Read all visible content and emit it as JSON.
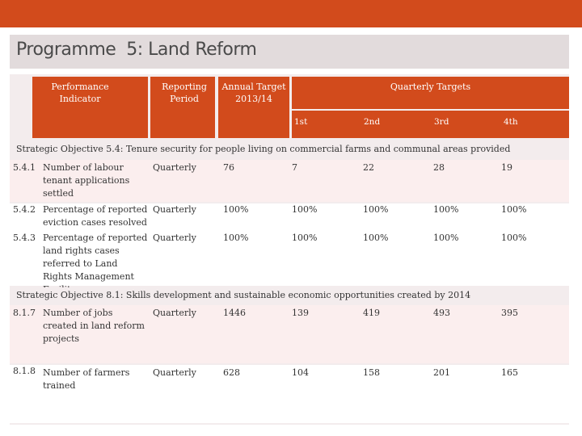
{
  "title": "Programme  5: Land Reform",
  "header": {
    "performance_indicator": "Performance Indicator",
    "reporting_period": "Reporting Period",
    "annual_target": "Annual Target 2013/14",
    "quarterly_targets": "Quarterly Targets",
    "quarters": [
      "1st",
      "2nd",
      "3rd",
      "4th"
    ]
  },
  "objective_1": "Strategic Objective 5.4: Tenure security for people living on commercial farms and communal areas provided",
  "objective_2": "Strategic Objective 8.1:  Skills development and sustainable economic opportunities created by 2014",
  "rows": [
    {
      "id": "5.4.1",
      "indicator": "Number of labour tenant applications settled",
      "period": "Quarterly",
      "annual": "76",
      "q1": "7",
      "q2": "22",
      "q3": "28",
      "q4": "19"
    },
    {
      "id": "5.4.2",
      "indicator": "Percentage of reported eviction  cases resolved",
      "period": "Quarterly",
      "annual": "100%",
      "q1": "100%",
      "q2": "100%",
      "q3": "100%",
      "q4": "100%"
    },
    {
      "id": "5.4.3",
      "indicator": "Percentage of reported land rights cases referred to Land Rights Management Facility",
      "period": "Quarterly",
      "annual": "100%",
      "q1": "100%",
      "q2": "100%",
      "q3": "100%",
      "q4": "100%"
    },
    {
      "id": "8.1.7",
      "indicator": "Number of jobs created in land reform projects",
      "period": "Quarterly",
      "annual": "1446",
      "q1": "139",
      "q2": "419",
      "q3": "493",
      "q4": "395"
    },
    {
      "id": "8.1.8",
      "indicator": "Number of farmers trained",
      "period": "Quarterly",
      "annual": "628",
      "q1": "104",
      "q2": "158",
      "q3": "201",
      "q4": "165"
    }
  ],
  "colors": {
    "accent": "#d24b1c",
    "band": "#e2dbdc",
    "row_tint": "#fbeeee"
  }
}
